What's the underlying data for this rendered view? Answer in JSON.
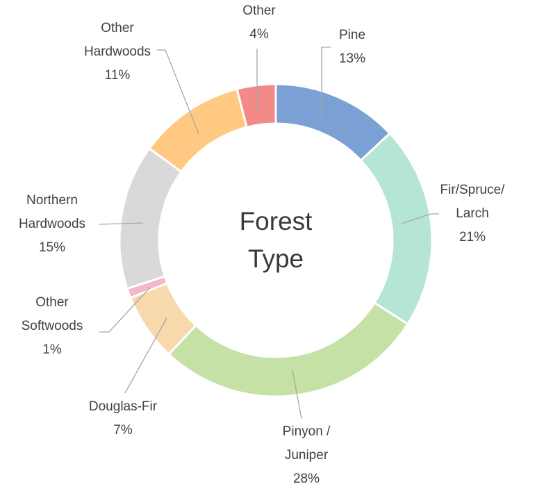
{
  "chart_data": {
    "type": "donut",
    "title": "Forest Type",
    "categories": [
      "Pine",
      "Fir/Spruce/\nLarch",
      "Pinyon /\nJuniper",
      "Douglas-Fir",
      "Other\nSoftwoods",
      "Northern\nHardwoods",
      "Other\nHardwoods",
      "Other"
    ],
    "values": [
      13,
      21,
      28,
      7,
      1,
      15,
      11,
      4
    ],
    "value_labels": [
      "13%",
      "21%",
      "28%",
      "7%",
      "1%",
      "15%",
      "11%",
      "4%"
    ],
    "colors": [
      "#7ba0d4",
      "#b4e5d5",
      "#c6e1a6",
      "#f7d9ab",
      "#f5b7c9",
      "#d9d9d9",
      "#ffc983",
      "#f18a89"
    ]
  }
}
